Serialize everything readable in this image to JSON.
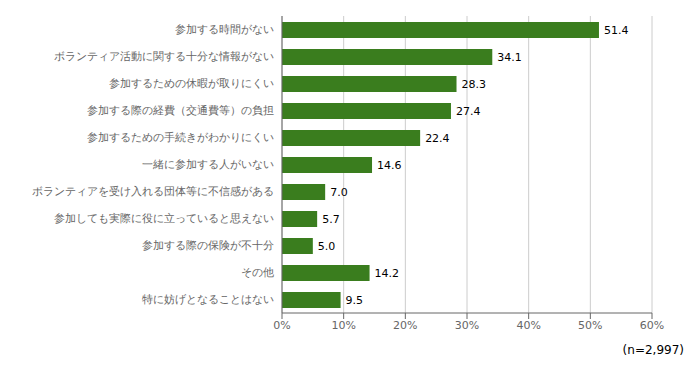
{
  "chart_data": {
    "type": "bar",
    "orientation": "horizontal",
    "categories": [
      "参加する時間がない",
      "ボランティア活動に関する十分な情報がない",
      "参加するための休暇が取りにくい",
      "参加する際の経費（交通費等）の負担",
      "参加するための手続きがわかりにくい",
      "一緒に参加する人がいない",
      "ボランティアを受け入れる団体等に不信感がある",
      "参加しても実際に役に立っていると思えない",
      "参加する際の保険が不十分",
      "その他",
      "特に妨げとなることはない"
    ],
    "values": [
      51.4,
      34.1,
      28.3,
      27.4,
      22.4,
      14.6,
      7.0,
      5.7,
      5.0,
      14.2,
      9.5
    ],
    "value_labels": [
      "51.4",
      "34.1",
      "28.3",
      "27.4",
      "22.4",
      "14.6",
      "7.0",
      "5.7",
      "5.0",
      "14.2",
      "9.5"
    ],
    "data_labels": true,
    "color": "#3a7d1e",
    "xlim": [
      0,
      60
    ],
    "xticks": [
      {
        "value": 0,
        "label": "0%"
      },
      {
        "value": 10,
        "label": "10%"
      },
      {
        "value": 20,
        "label": "20%"
      },
      {
        "value": 30,
        "label": "30%"
      },
      {
        "value": 40,
        "label": "40%"
      },
      {
        "value": 50,
        "label": "50%"
      },
      {
        "value": 60,
        "label": "60%"
      }
    ],
    "grid": true,
    "annotations": [
      "(n=2,997)"
    ]
  }
}
